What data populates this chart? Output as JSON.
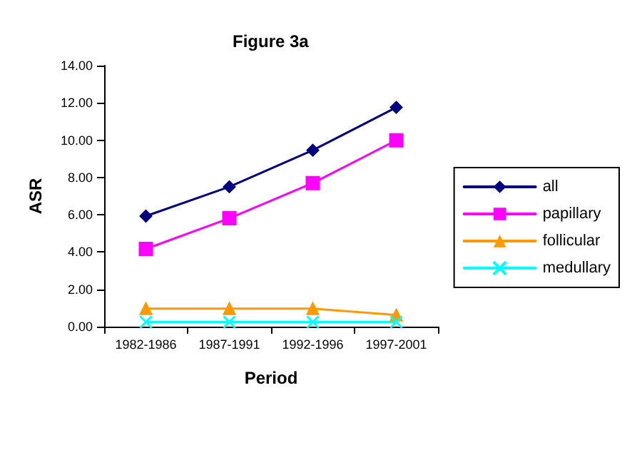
{
  "chart_data": {
    "type": "line",
    "title": "Figure 3a",
    "xlabel": "Period",
    "ylabel": "ASR",
    "categories": [
      "1982-1986",
      "1987-1991",
      "1992-1996",
      "1997-2001"
    ],
    "series": [
      {
        "name": "all",
        "color": "#000080",
        "marker": "diamond",
        "values": [
          5.93,
          7.5,
          9.46,
          11.76
        ]
      },
      {
        "name": "papillary",
        "color": "#ff00ff",
        "marker": "square",
        "values": [
          4.17,
          5.81,
          7.7,
          9.99
        ]
      },
      {
        "name": "follicular",
        "color": "#ff9900",
        "marker": "triangle",
        "values": [
          0.97,
          0.97,
          0.97,
          0.62
        ]
      },
      {
        "name": "medullary",
        "color": "#00ffff",
        "marker": "cross",
        "values": [
          0.25,
          0.25,
          0.25,
          0.25
        ]
      }
    ],
    "ylim": [
      0,
      14
    ],
    "yticks": [
      {
        "value": 0,
        "label": "0.00"
      },
      {
        "value": 2,
        "label": "2.00"
      },
      {
        "value": 4,
        "label": "4.00"
      },
      {
        "value": 6,
        "label": "6.00"
      },
      {
        "value": 8,
        "label": "8.00"
      },
      {
        "value": 10,
        "label": "10.00"
      },
      {
        "value": 12,
        "label": "12.00"
      },
      {
        "value": 14,
        "label": "14.00"
      }
    ],
    "grid": false,
    "legend": "right"
  }
}
